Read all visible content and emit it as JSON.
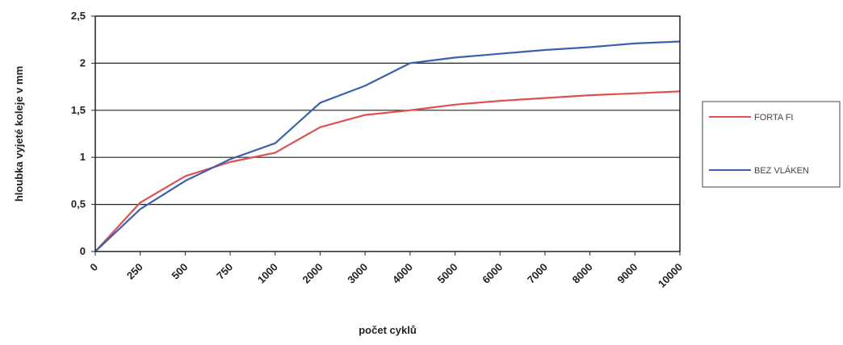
{
  "chart_data": {
    "type": "line",
    "categories": [
      "0",
      "250",
      "500",
      "750",
      "1000",
      "2000",
      "3000",
      "4000",
      "5000",
      "6000",
      "7000",
      "8000",
      "9000",
      "10000"
    ],
    "series": [
      {
        "name": "FORTA FI",
        "color": "#e05050",
        "values": [
          0,
          0.52,
          0.8,
          0.95,
          1.05,
          1.32,
          1.45,
          1.5,
          1.56,
          1.6,
          1.63,
          1.66,
          1.68,
          1.7
        ]
      },
      {
        "name": "BEZ VLÁKEN",
        "color": "#3c5fb0",
        "values": [
          0,
          0.45,
          0.75,
          0.98,
          1.15,
          1.58,
          1.76,
          2.0,
          2.06,
          2.1,
          2.14,
          2.17,
          2.21,
          2.23
        ]
      }
    ],
    "xlabel": "počet cyklů",
    "ylabel": "hloubka vyjeté koleje v mm",
    "ylim": [
      0,
      2.5
    ],
    "yticks": [
      "0",
      "0,5",
      "1",
      "1,5",
      "2",
      "2,5"
    ],
    "grid": true,
    "legend_position": "right"
  }
}
